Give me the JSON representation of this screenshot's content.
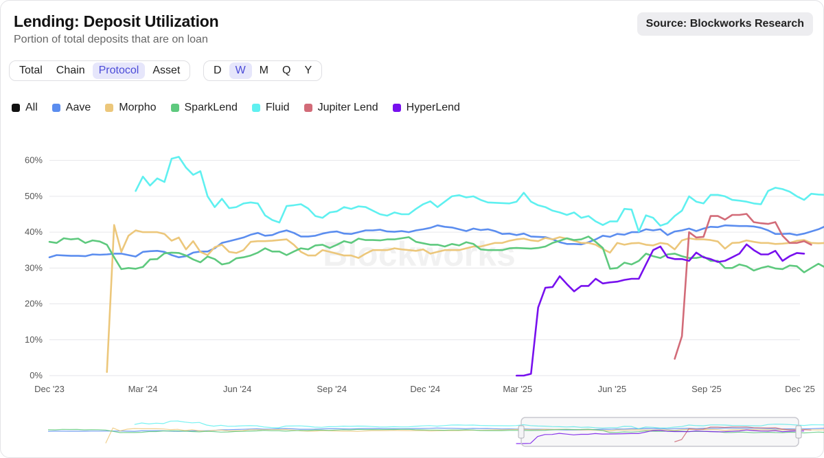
{
  "header": {
    "title": "Lending: Deposit Utilization",
    "subtitle": "Portion of total deposits that are on loan",
    "source": "Source: Blockworks Research"
  },
  "view_tabs": [
    {
      "label": "Total",
      "active": false
    },
    {
      "label": "Chain",
      "active": false
    },
    {
      "label": "Protocol",
      "active": true
    },
    {
      "label": "Asset",
      "active": false
    }
  ],
  "period_tabs": [
    {
      "label": "D",
      "active": false
    },
    {
      "label": "W",
      "active": true
    },
    {
      "label": "M",
      "active": false
    },
    {
      "label": "Q",
      "active": false
    },
    {
      "label": "Y",
      "active": false
    }
  ],
  "legend": [
    {
      "label": "All",
      "color": "#111111"
    },
    {
      "label": "Aave",
      "color": "#5b8def"
    },
    {
      "label": "Morpho",
      "color": "#ecc77b"
    },
    {
      "label": "SparkLend",
      "color": "#5ec97e"
    },
    {
      "label": "Fluid",
      "color": "#5ff0f0"
    },
    {
      "label": "Jupiter Lend",
      "color": "#d26b78"
    },
    {
      "label": "HyperLend",
      "color": "#7710ee"
    }
  ],
  "watermark": "Blockworks",
  "chart_data": {
    "type": "line",
    "x_axis": {
      "type": "date",
      "start": "2023-12-01",
      "end": "2025-12-01",
      "ticks": [
        "Dec '23",
        "Mar '24",
        "Jun '24",
        "Sep '24",
        "Dec '24",
        "Mar '25",
        "Jun '25",
        "Sep '25",
        "Dec '25"
      ]
    },
    "y_axis": {
      "unit": "%",
      "ylim": [
        0,
        63
      ],
      "ticks": [
        "0%",
        "10%",
        "20%",
        "30%",
        "40%",
        "50%",
        "60%"
      ],
      "tick_values": [
        0,
        10,
        20,
        30,
        40,
        50,
        60
      ]
    },
    "grid": "horizontal",
    "legend_position": "top-left",
    "series": [
      {
        "name": "Aave",
        "color": "#5b8def",
        "start": "2023-12-01",
        "values": [
          33,
          33.6,
          33.5,
          33.4,
          33.4,
          33.3,
          33.8,
          33.7,
          33.8,
          34,
          34,
          33.6,
          33.2,
          34.5,
          34.7,
          34.8,
          34.5,
          33.6,
          33,
          33.3,
          34.3,
          34.6,
          34.6,
          35.5,
          37,
          37.5,
          38,
          38.5,
          39.3,
          39.8,
          39,
          39.2,
          40,
          40.5,
          39.8,
          38.8,
          38.8,
          39,
          39.6,
          40,
          40.2,
          39.6,
          39.5,
          40,
          40.5,
          40.5,
          40.7,
          40.2,
          40.1,
          40.3,
          40,
          40.5,
          40.8,
          41.2,
          41.9,
          41.5,
          41.3,
          40.8,
          40.3,
          41,
          40.6,
          40.8,
          40.3,
          39.5,
          39.6,
          39.2,
          39.6,
          38.8,
          38.7,
          38.6,
          38,
          37.2,
          36.7,
          36.7,
          36.6,
          37.2,
          38,
          39,
          38.7,
          39.5,
          39.3,
          40,
          40,
          40.8,
          40.5,
          40.8,
          39.2,
          40.2,
          40.5,
          41,
          40.3,
          41,
          41.5,
          41.4,
          41.9,
          41.8,
          41.7,
          41.7,
          41.6,
          41.2,
          40.5,
          39.5,
          39.5,
          39.6,
          39.2,
          39.6,
          40.2,
          40.8,
          41.7,
          41.2,
          39.9,
          39.5,
          39.5
        ]
      },
      {
        "name": "Morpho",
        "start": "2024-01-26",
        "color": "#ecc77b",
        "values": [
          1,
          42,
          34.5,
          39,
          40.5,
          40,
          40,
          40,
          39.5,
          37.6,
          38.5,
          35.2,
          37.5,
          34.5,
          33.6,
          35.8,
          36.5,
          34.5,
          34.2,
          35,
          37.3,
          37.5,
          37.5,
          37.6,
          37.8,
          38,
          36.5,
          34.5,
          33.5,
          33.5,
          35,
          34.5,
          34,
          33.5,
          33.5,
          32.8,
          34,
          35,
          35,
          35,
          35.5,
          35.2,
          35,
          34.8,
          35.2,
          34,
          34.5,
          35,
          35,
          35,
          35.5,
          36,
          36,
          36.5,
          37,
          37,
          37.6,
          38,
          38.2,
          37.7,
          37.5,
          38.4,
          38,
          38.6,
          38.2,
          37.6,
          37,
          37,
          36.5,
          35.3,
          34.3,
          37,
          36.5,
          36.9,
          37,
          36.5,
          36.3,
          37,
          36.7,
          35.2,
          37.7,
          38.3,
          38,
          38,
          37.8,
          37.4,
          35.4,
          37,
          37.1,
          37.7,
          37.3,
          37,
          37,
          36.7,
          36.8,
          37,
          37.6,
          37.8,
          37,
          36.9,
          37,
          37.2,
          36.7,
          36.8,
          36.7,
          36.7,
          36.2
        ]
      },
      {
        "name": "SparkLend",
        "start": "2023-12-01",
        "color": "#5ec97e",
        "values": [
          37.3,
          37,
          38.3,
          38,
          38.2,
          37,
          37.7,
          37.4,
          36.5,
          33,
          29.7,
          30,
          29.8,
          30.3,
          32.4,
          32.5,
          34.1,
          34.3,
          34.2,
          33.5,
          32.4,
          31.6,
          33.2,
          32.5,
          31,
          31.4,
          32.7,
          33,
          33.5,
          34.3,
          35.5,
          34.6,
          34.6,
          33.6,
          34.6,
          35.5,
          35.2,
          36.3,
          36.5,
          35.6,
          36.5,
          37.5,
          37,
          38.2,
          37.8,
          37.8,
          37.7,
          38,
          38,
          38.3,
          38.6,
          37.3,
          36.9,
          36.5,
          36.5,
          36,
          36.7,
          36.3,
          37.2,
          36.7,
          35.2,
          35,
          35,
          35,
          35.5,
          35.6,
          35.5,
          35.4,
          35.6,
          36,
          37,
          37.6,
          38.3,
          37.8,
          38,
          38.8,
          37.3,
          35.6,
          29.8,
          30,
          31.5,
          31,
          32,
          34,
          33.3,
          32.8,
          33.8,
          34,
          33.3,
          32.8,
          32.8,
          33.2,
          32,
          32,
          30,
          30,
          31,
          30.5,
          29.3,
          30,
          30.5,
          29.9,
          29.7,
          30.7,
          30.5,
          28.8,
          30,
          31.2,
          30.1,
          29.5,
          27.5
        ]
      },
      {
        "name": "Fluid",
        "start": "2024-02-23",
        "color": "#5ff0f0",
        "values": [
          51.5,
          55.5,
          53,
          55,
          54,
          60.5,
          61,
          58,
          56,
          57,
          50,
          47,
          49.3,
          46.7,
          47,
          48,
          48.3,
          48,
          44.7,
          43.4,
          42.7,
          47.3,
          47.5,
          47.8,
          46.6,
          44.5,
          44,
          45.5,
          45.8,
          47,
          46.5,
          47.2,
          47,
          46,
          45,
          44.6,
          45.5,
          45,
          45,
          46.5,
          47.8,
          48.6,
          47,
          48.5,
          50,
          50.3,
          49.7,
          50,
          49,
          48.3,
          48.2,
          48.1,
          48,
          48.5,
          51,
          48.5,
          47.5,
          47,
          46,
          45.5,
          44.8,
          45.5,
          44,
          44.5,
          43,
          42,
          43,
          43,
          46.5,
          46.3,
          40.2,
          44.7,
          44,
          41.8,
          42.5,
          44.5,
          46,
          50,
          48.5,
          48,
          50.4,
          50.4,
          50,
          49,
          48.8,
          48.5,
          48,
          47.8,
          51.5,
          52.4,
          52,
          51.3,
          50,
          49,
          50.7,
          50.5,
          50.4,
          50.1,
          51.7,
          48.5,
          48.6,
          48.3,
          48.4,
          48.3,
          47.5,
          47.9,
          48,
          48.3,
          47.3,
          47.9,
          47.3,
          49,
          48.5
        ]
      },
      {
        "name": "Jupiter Lend",
        "start": "2025-08-01",
        "color": "#d26b78",
        "values": [
          4.7,
          11,
          40,
          38.5,
          38.7,
          44.5,
          44.5,
          43.5,
          44.8,
          44.8,
          45.1,
          42.8,
          42.5,
          42.3,
          42.8,
          39,
          37,
          37,
          37.5,
          36.5
        ]
      },
      {
        "name": "HyperLend",
        "start": "2025-02-28",
        "color": "#7710ee",
        "values": [
          0,
          0,
          0.5,
          19,
          24.5,
          24.7,
          27.7,
          25.5,
          23.5,
          25,
          25,
          27,
          25.7,
          26,
          26.2,
          26.7,
          27,
          27,
          31,
          35,
          36,
          33,
          32.5,
          32.5,
          32,
          34.3,
          33,
          32.5,
          31.7,
          32,
          33,
          34,
          36.6,
          35,
          33.8,
          33.8,
          34.8,
          32,
          33.3,
          34.2,
          34
        ]
      }
    ]
  }
}
